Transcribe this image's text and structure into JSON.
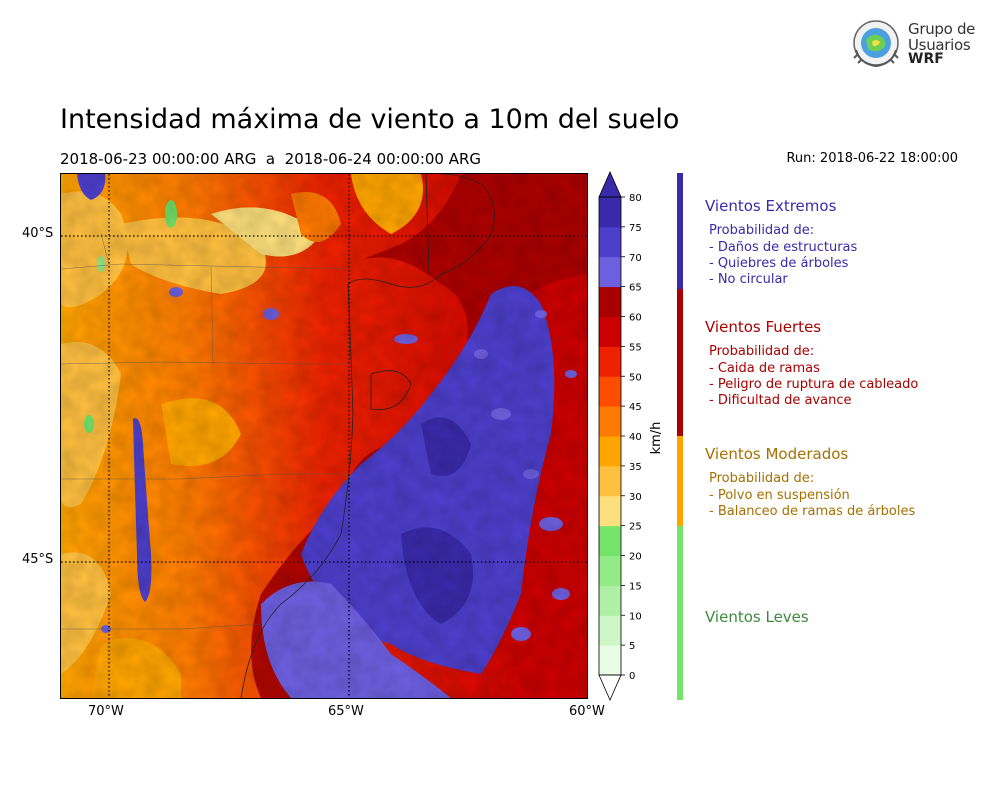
{
  "logo": {
    "line1": "Grupo de",
    "line2": "Usuarios",
    "line3": "WRF"
  },
  "title": "Intensidad máxima de viento a 10m del suelo",
  "subtitle": "2018-06-23 00:00:00 ARG  a  2018-06-24 00:00:00 ARG",
  "run": "Run: 2018-06-22 18:00:00",
  "map": {
    "lat_labels": [
      "40°S",
      "45°S"
    ],
    "lon_labels": [
      "70°W",
      "65°W",
      "60°W"
    ]
  },
  "colorbar": {
    "label": "km/h",
    "ticks": [
      "0",
      "5",
      "10",
      "15",
      "20",
      "25",
      "30",
      "35",
      "40",
      "45",
      "50",
      "55",
      "60",
      "65",
      "70",
      "75",
      "80"
    ],
    "colors": [
      "#e9fce4",
      "#cdf7c5",
      "#b0f0a6",
      "#92eb87",
      "#74e46a",
      "#fde07d",
      "#ffc040",
      "#ffa500",
      "#ff7a00",
      "#ff4d00",
      "#ee2200",
      "#cc0000",
      "#a80000",
      "#6e5fdf",
      "#4d3fcc",
      "#3a2aaa"
    ],
    "extend_low": "#ffffff",
    "extend_high": "#3a2aaa"
  },
  "legend": {
    "bar_colors": [
      "#3a2aaa",
      "#a80000",
      "#ffa500",
      "#74e46a"
    ],
    "categories": [
      {
        "title": "Vientos Extremos",
        "color": "#3a2aaa",
        "lines": [
          "Probabilidad de:",
          "- Daños de estructuras",
          "- Quiebres de árboles",
          "- No circular"
        ]
      },
      {
        "title": "Vientos Fuertes",
        "color": "#a80000",
        "lines": [
          "Probabilidad de:",
          "- Caida de ramas",
          "- Peligro de ruptura de cableado",
          "- Dificultad de avance"
        ]
      },
      {
        "title": "Vientos Moderados",
        "color": "#a57000",
        "lines": [
          "Probabilidad de:",
          "- Polvo en suspensión",
          "- Balanceo de ramas de árboles"
        ]
      },
      {
        "title": "Vientos Leves",
        "color": "#3d8a3d",
        "lines": []
      }
    ]
  }
}
